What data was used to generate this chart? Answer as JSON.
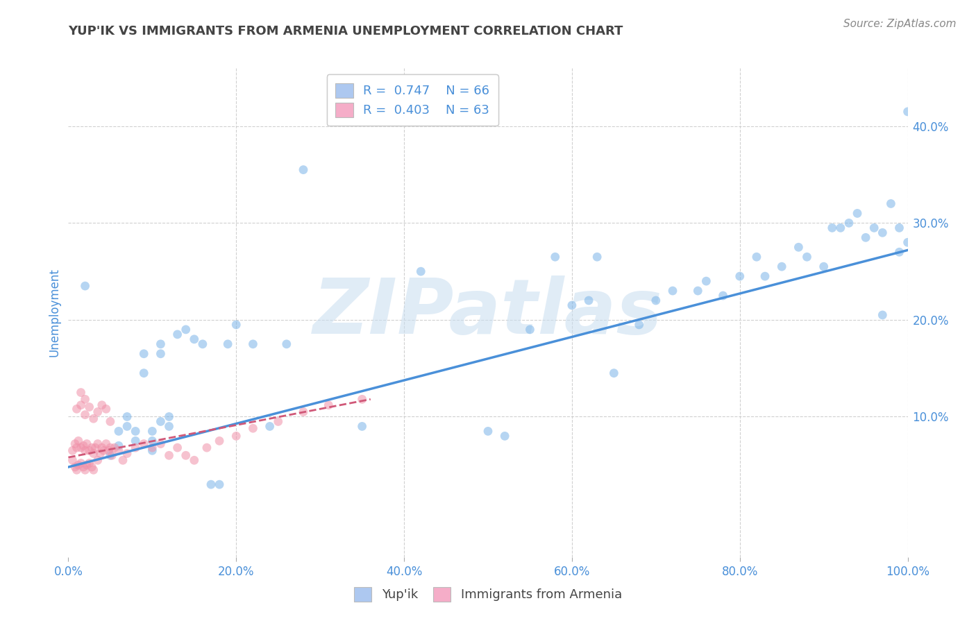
{
  "title": "YUP'IK VS IMMIGRANTS FROM ARMENIA UNEMPLOYMENT CORRELATION CHART",
  "source": "Source: ZipAtlas.com",
  "xlabel_ticks": [
    "0.0%",
    "20.0%",
    "40.0%",
    "60.0%",
    "80.0%",
    "100.0%"
  ],
  "xlabel_vals": [
    0.0,
    0.2,
    0.4,
    0.6,
    0.8,
    1.0
  ],
  "ylabel": "Unemployment",
  "ylabel_ticks": [
    "10.0%",
    "20.0%",
    "30.0%",
    "40.0%"
  ],
  "ylabel_vals": [
    0.1,
    0.2,
    0.3,
    0.4
  ],
  "legend1_label": "R =  0.747    N = 66",
  "legend2_label": "R =  0.403    N = 63",
  "legend1_color": "#adc8f0",
  "legend2_color": "#f5adc8",
  "scatter_blue_color": "#7ab4e8",
  "scatter_pink_color": "#f090a8",
  "line_blue_color": "#4a90d9",
  "line_pink_color": "#d05878",
  "watermark_color": "#c8ddf0",
  "background_color": "#ffffff",
  "grid_color": "#d0d0d0",
  "title_color": "#444444",
  "axis_label_color": "#4a90d9",
  "tick_label_color": "#4a90d9",
  "xlim": [
    0.0,
    1.0
  ],
  "ylim": [
    -0.045,
    0.46
  ],
  "blue_scatter_x": [
    0.02,
    0.05,
    0.06,
    0.06,
    0.07,
    0.07,
    0.08,
    0.08,
    0.09,
    0.09,
    0.1,
    0.1,
    0.1,
    0.11,
    0.11,
    0.11,
    0.12,
    0.12,
    0.13,
    0.14,
    0.15,
    0.16,
    0.17,
    0.18,
    0.19,
    0.2,
    0.22,
    0.24,
    0.26,
    0.28,
    0.35,
    0.42,
    0.5,
    0.52,
    0.55,
    0.58,
    0.6,
    0.62,
    0.63,
    0.65,
    0.68,
    0.7,
    0.72,
    0.75,
    0.76,
    0.78,
    0.8,
    0.82,
    0.83,
    0.85,
    0.87,
    0.88,
    0.9,
    0.91,
    0.92,
    0.93,
    0.94,
    0.95,
    0.96,
    0.97,
    0.97,
    0.98,
    0.99,
    0.99,
    1.0,
    1.0
  ],
  "blue_scatter_y": [
    0.235,
    0.06,
    0.07,
    0.085,
    0.09,
    0.1,
    0.075,
    0.085,
    0.145,
    0.165,
    0.065,
    0.075,
    0.085,
    0.095,
    0.165,
    0.175,
    0.09,
    0.1,
    0.185,
    0.19,
    0.18,
    0.175,
    0.03,
    0.03,
    0.175,
    0.195,
    0.175,
    0.09,
    0.175,
    0.355,
    0.09,
    0.25,
    0.085,
    0.08,
    0.19,
    0.265,
    0.215,
    0.22,
    0.265,
    0.145,
    0.195,
    0.22,
    0.23,
    0.23,
    0.24,
    0.225,
    0.245,
    0.265,
    0.245,
    0.255,
    0.275,
    0.265,
    0.255,
    0.295,
    0.295,
    0.3,
    0.31,
    0.285,
    0.295,
    0.29,
    0.205,
    0.32,
    0.295,
    0.27,
    0.415,
    0.28
  ],
  "pink_scatter_x": [
    0.005,
    0.005,
    0.008,
    0.008,
    0.01,
    0.01,
    0.012,
    0.012,
    0.015,
    0.015,
    0.018,
    0.018,
    0.02,
    0.02,
    0.022,
    0.022,
    0.025,
    0.025,
    0.028,
    0.028,
    0.03,
    0.03,
    0.032,
    0.035,
    0.035,
    0.038,
    0.04,
    0.042,
    0.045,
    0.048,
    0.05,
    0.052,
    0.055,
    0.06,
    0.065,
    0.07,
    0.08,
    0.09,
    0.1,
    0.11,
    0.12,
    0.13,
    0.14,
    0.15,
    0.165,
    0.18,
    0.2,
    0.22,
    0.25,
    0.28,
    0.31,
    0.35,
    0.01,
    0.015,
    0.02,
    0.025,
    0.03,
    0.035,
    0.04,
    0.045,
    0.05,
    0.015,
    0.02
  ],
  "pink_scatter_y": [
    0.055,
    0.065,
    0.048,
    0.072,
    0.045,
    0.068,
    0.05,
    0.075,
    0.052,
    0.068,
    0.048,
    0.07,
    0.045,
    0.065,
    0.05,
    0.072,
    0.052,
    0.065,
    0.048,
    0.068,
    0.045,
    0.062,
    0.068,
    0.055,
    0.072,
    0.062,
    0.068,
    0.065,
    0.072,
    0.065,
    0.068,
    0.06,
    0.068,
    0.065,
    0.055,
    0.062,
    0.068,
    0.072,
    0.068,
    0.072,
    0.06,
    0.068,
    0.06,
    0.055,
    0.068,
    0.075,
    0.08,
    0.088,
    0.095,
    0.105,
    0.112,
    0.118,
    0.108,
    0.112,
    0.102,
    0.11,
    0.098,
    0.105,
    0.112,
    0.108,
    0.095,
    0.125,
    0.118
  ],
  "blue_line_x": [
    0.0,
    1.0
  ],
  "blue_line_y": [
    0.048,
    0.272
  ],
  "pink_line_x": [
    0.0,
    0.36
  ],
  "pink_line_y": [
    0.058,
    0.118
  ],
  "scatter_size": 85,
  "scatter_alpha": 0.55,
  "figsize": [
    14.06,
    8.92
  ],
  "dpi": 100
}
